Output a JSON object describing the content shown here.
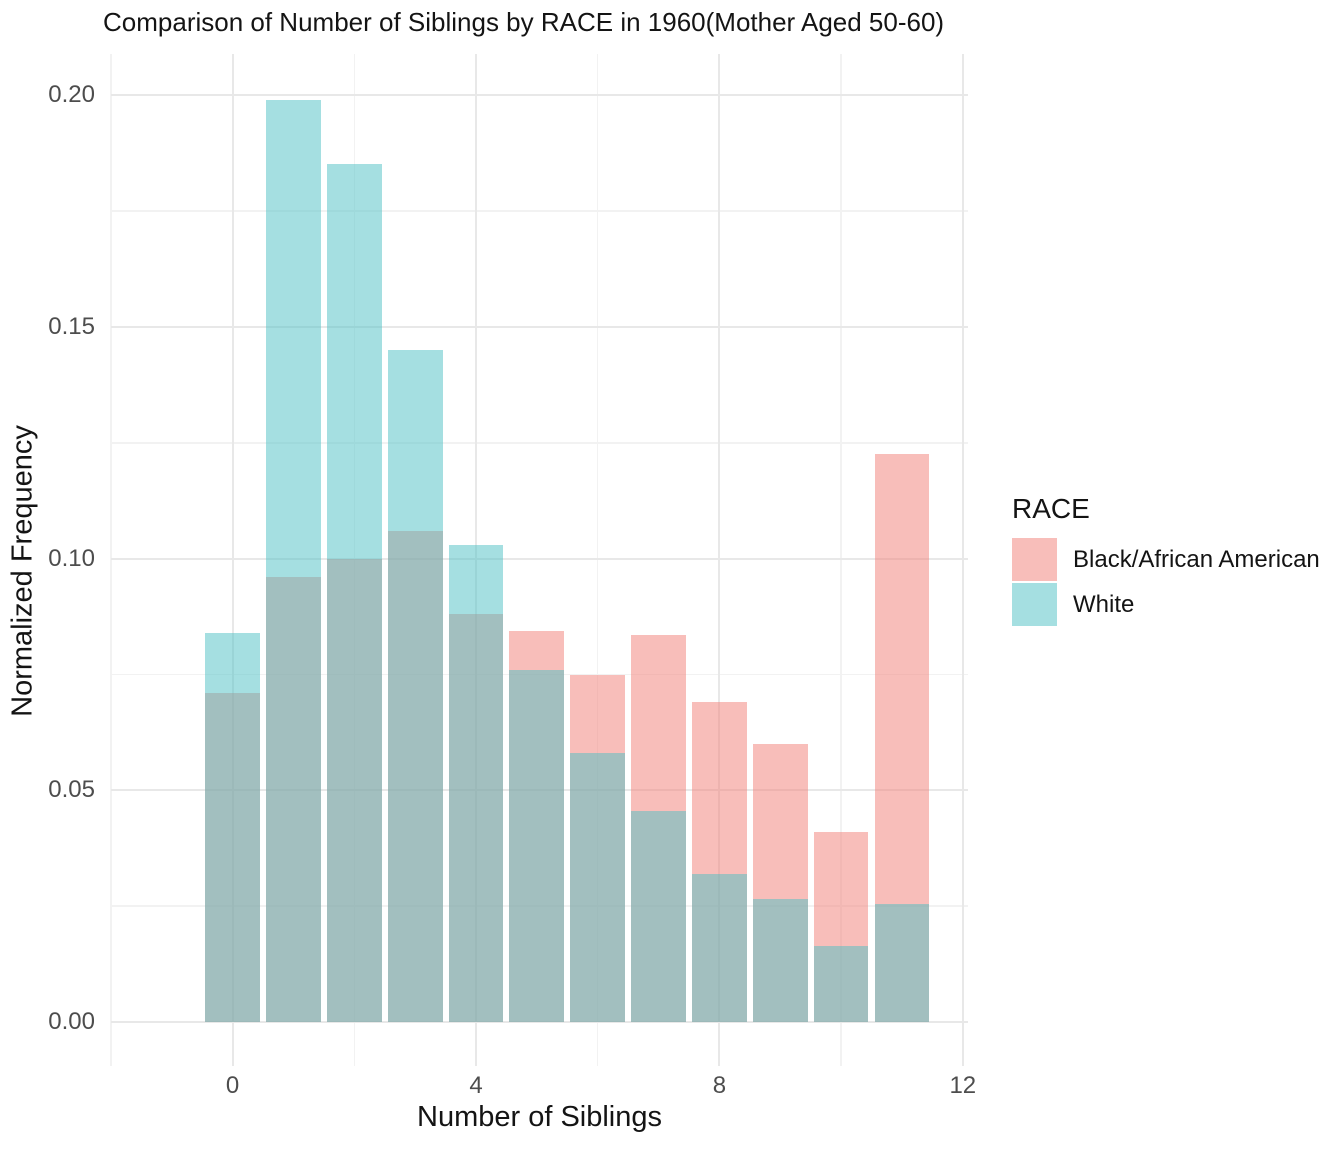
{
  "figure": {
    "title": "Comparison of Number of Siblings by RACE in 1960(Mother Aged 50-60)"
  },
  "axes": {
    "x": {
      "label": "Number of Siblings",
      "tick_labels": [
        "0",
        "4",
        "8",
        "12"
      ]
    },
    "y": {
      "label": "Normalized Frequency",
      "tick_labels": [
        "0.00",
        "0.05",
        "0.10",
        "0.15",
        "0.20"
      ]
    }
  },
  "legend": {
    "title": "RACE",
    "entries": [
      {
        "label": "Black/African American",
        "swatch_color": "#F8BEBA"
      },
      {
        "label": "White",
        "swatch_color": "#A5DFE1"
      }
    ]
  },
  "chart_data": {
    "type": "bar",
    "subtype": "overlaid normalized histogram, semi-transparent fills",
    "title": "Comparison of Number of Siblings by RACE in 1960(Mother Aged 50-60)",
    "xlabel": "Number of Siblings",
    "ylabel": "Normalized Frequency",
    "categories": [
      0,
      1,
      2,
      3,
      4,
      5,
      6,
      7,
      8,
      9,
      10,
      11
    ],
    "series": [
      {
        "name": "Black/African American",
        "fill_rgba": "rgba(241,125,117,0.5)",
        "flat_color": "#F8BEBA",
        "values": [
          0.071,
          0.096,
          0.1,
          0.106,
          0.088,
          0.0845,
          0.075,
          0.0835,
          0.069,
          0.06,
          0.041,
          0.1227
        ]
      },
      {
        "name": "White",
        "fill_rgba": "rgba(75,191,195,0.5)",
        "flat_color": "#A5DFE1",
        "values": [
          0.084,
          0.199,
          0.1852,
          0.145,
          0.103,
          0.076,
          0.058,
          0.0455,
          0.032,
          0.0265,
          0.0165,
          0.0255
        ]
      }
    ],
    "overlap_color": "#A1BEBE",
    "bar_width": 0.9,
    "xlim": [
      -2,
      12.09
    ],
    "ylim": [
      -0.0089,
      0.2089
    ],
    "x_ticks": [
      0,
      4,
      8,
      12
    ],
    "y_ticks": [
      0,
      0.05,
      0.1,
      0.15,
      0.2
    ],
    "x_minor_ticks": [
      -2,
      2,
      6,
      10
    ],
    "y_minor_ticks": [
      0.025,
      0.075,
      0.125,
      0.175
    ],
    "grid": true,
    "legend_title": "RACE",
    "legend_position": "right"
  },
  "colors": {
    "background": "#FFFFFF",
    "grid_major": "#E8E8E8",
    "grid_minor": "#F2F2F2",
    "tick_label": "#4D4D4D",
    "text": "#141414"
  }
}
